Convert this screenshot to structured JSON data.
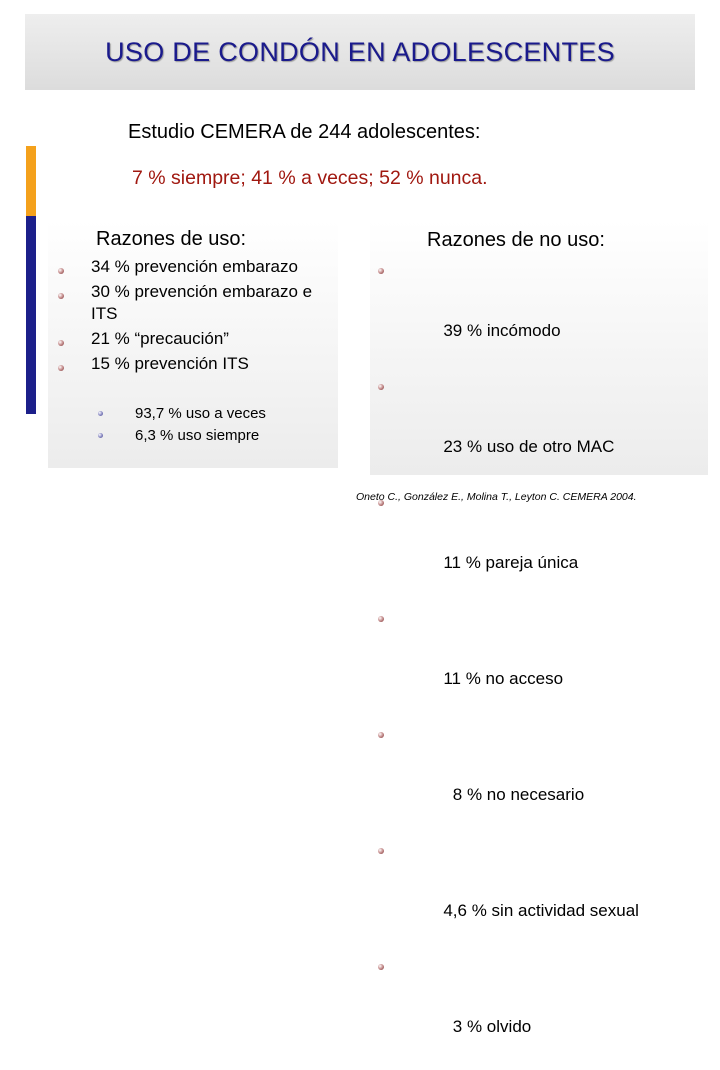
{
  "title": "USO DE CONDÓN EN ADOLESCENTES",
  "study": "Estudio CEMERA de 244 adolescentes:",
  "stats": "7 % siempre; 41 % a veces; 52 % nunca.",
  "left_panel": {
    "heading": "Razones de uso:",
    "items": [
      "34 % prevención embarazo",
      "30 % prevención embarazo e ITS",
      "21 % “precaución”",
      "15 % prevención ITS"
    ],
    "sub_items": [
      "93,7 % uso a veces",
      "6,3 % uso siempre"
    ]
  },
  "right_panel": {
    "heading": "Razones de no uso:",
    "items": [
      "39 % incómodo",
      "23 % uso de otro MAC",
      "11 % pareja única",
      "11 % no acceso",
      "  8 % no necesario",
      "4,6 % sin actividad sexual",
      "  3 % olvido"
    ]
  },
  "citation": "Oneto C., González E., Molina T., Leyton C. CEMERA 2004.",
  "colors": {
    "title": "#1a1a8c",
    "stats": "#a01810",
    "accent_orange": "#f4a11c",
    "accent_navy": "#1c1f8a"
  }
}
